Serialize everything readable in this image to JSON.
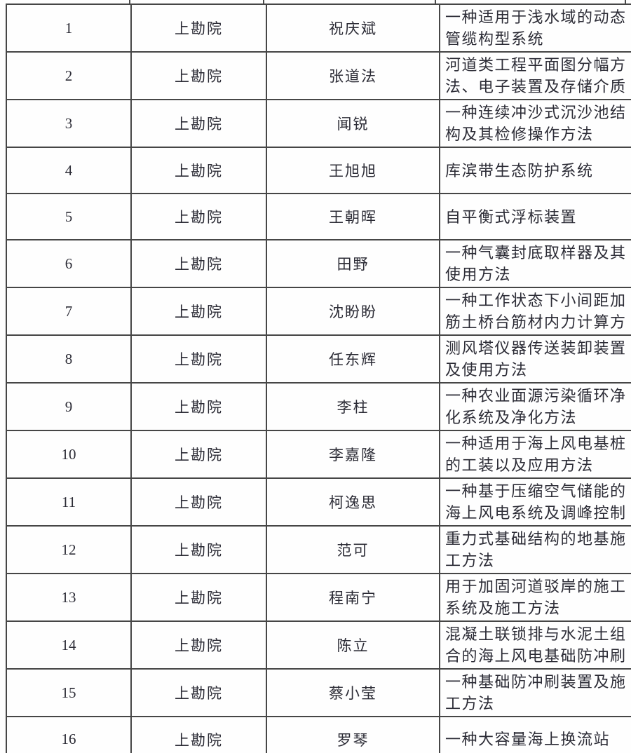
{
  "colors": {
    "table_border": "#464646",
    "text": "#2c2c36",
    "background": "#fefefe"
  },
  "table": {
    "rows": [
      {
        "no": "1",
        "org": "上勘院",
        "name": "祝庆斌",
        "title": "一种适用于浅水域的动态管缆构型系统"
      },
      {
        "no": "2",
        "org": "上勘院",
        "name": "张道法",
        "title": "河道类工程平面图分幅方法、电子装置及存储介质"
      },
      {
        "no": "3",
        "org": "上勘院",
        "name": "闻锐",
        "title": "一种连续冲沙式沉沙池结构及其检修操作方法"
      },
      {
        "no": "4",
        "org": "上勘院",
        "name": "王旭旭",
        "title": "库滨带生态防护系统"
      },
      {
        "no": "5",
        "org": "上勘院",
        "name": "王朝晖",
        "title": "自平衡式浮标装置"
      },
      {
        "no": "6",
        "org": "上勘院",
        "name": "田野",
        "title": "一种气囊封底取样器及其使用方法"
      },
      {
        "no": "7",
        "org": "上勘院",
        "name": "沈盼盼",
        "title": "一种工作状态下小间距加筋土桥台筋材内力计算方"
      },
      {
        "no": "8",
        "org": "上勘院",
        "name": "任东辉",
        "title": "测风塔仪器传送装卸装置及使用方法"
      },
      {
        "no": "9",
        "org": "上勘院",
        "name": "李柱",
        "title": "一种农业面源污染循环净化系统及净化方法"
      },
      {
        "no": "10",
        "org": "上勘院",
        "name": "李嘉隆",
        "title": "一种适用于海上风电基桩的工装以及应用方法"
      },
      {
        "no": "11",
        "org": "上勘院",
        "name": "柯逸思",
        "title": "一种基于压缩空气储能的海上风电系统及调峰控制"
      },
      {
        "no": "12",
        "org": "上勘院",
        "name": "范可",
        "title": "重力式基础结构的地基施工方法"
      },
      {
        "no": "13",
        "org": "上勘院",
        "name": "程南宁",
        "title": "用于加固河道驳岸的施工系统及施工方法"
      },
      {
        "no": "14",
        "org": "上勘院",
        "name": "陈立",
        "title": "混凝土联锁排与水泥土组合的海上风电基础防冲刷"
      },
      {
        "no": "15",
        "org": "上勘院",
        "name": "蔡小莹",
        "title": "一种基础防冲刷装置及施工方法"
      },
      {
        "no": "16",
        "org": "上勘院",
        "name": "罗琴",
        "title": "一种大容量海上换流站"
      }
    ]
  }
}
